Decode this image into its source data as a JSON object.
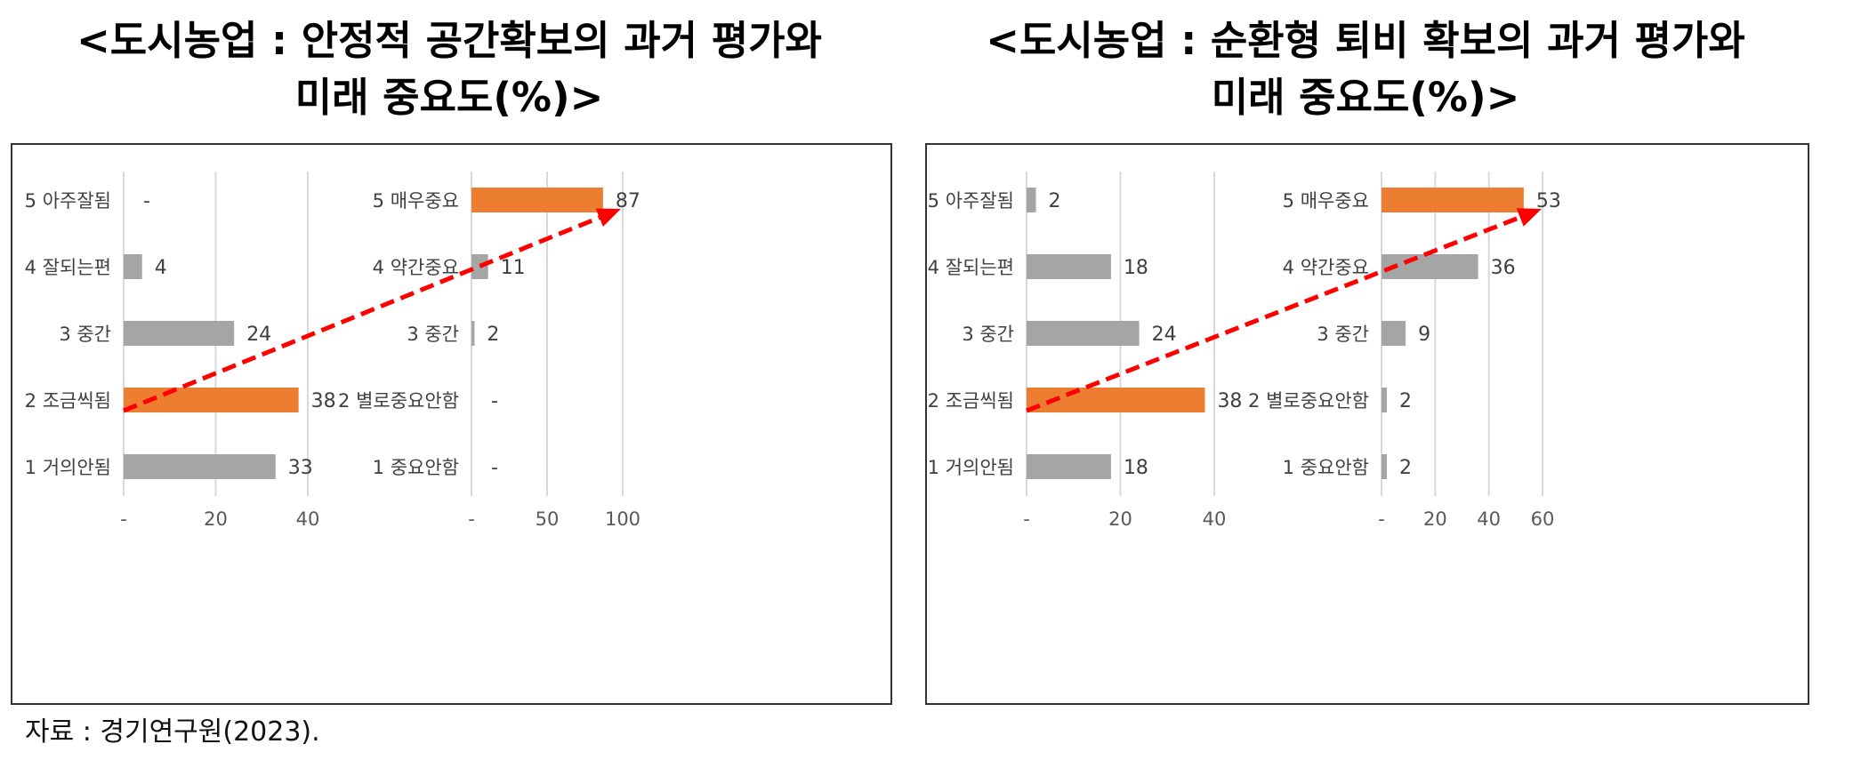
{
  "titles": {
    "left": {
      "line1": "<도시농업 : 안정적 공간확보의 과거 평가와",
      "line2": "미래 중요도(%)>"
    },
    "right": {
      "line1": "<도시농업 : 순환형 퇴비 확보의 과거 평가와",
      "line2": "미래 중요도(%)>"
    }
  },
  "source": "자료 : 경기연구원(2023).",
  "colors": {
    "gray_bar": "#a5a5a5",
    "highlight_bar": "#ed7d31",
    "grid": "#d9d9d9",
    "arrow": "#ff0000"
  },
  "chart_data": [
    {
      "type": "bar",
      "orientation": "horizontal",
      "panels": [
        {
          "categories": [
            "5 아주잘됨",
            "4 잘되는편",
            "3 중간",
            "2 조금씩됨",
            "1 거의안됨"
          ],
          "values": [
            0,
            4,
            24,
            38,
            33
          ],
          "value_labels": [
            "-",
            "4",
            "24",
            "38",
            "33"
          ],
          "highlight_index": 3,
          "xlim": [
            0,
            40
          ],
          "ticks": [
            0,
            20,
            40
          ],
          "tick_labels": [
            "-",
            "20",
            "40"
          ]
        },
        {
          "categories": [
            "5 매우중요",
            "4 약간중요",
            "3 중간",
            "2 별로중요안함",
            "1 중요안함"
          ],
          "values": [
            87,
            11,
            2,
            0,
            0
          ],
          "value_labels": [
            "87",
            "11",
            "2",
            "-",
            "-"
          ],
          "highlight_index": 0,
          "xlim": [
            0,
            100
          ],
          "ticks": [
            0,
            50,
            100
          ],
          "tick_labels": [
            "-",
            "50",
            "100"
          ]
        }
      ],
      "annotation": "dashed red arrow from the highlighted past bar to the highlighted future bar"
    },
    {
      "type": "bar",
      "orientation": "horizontal",
      "panels": [
        {
          "categories": [
            "5 아주잘됨",
            "4 잘되는편",
            "3 중간",
            "2 조금씩됨",
            "1 거의안됨"
          ],
          "values": [
            2,
            18,
            24,
            38,
            18
          ],
          "value_labels": [
            "2",
            "18",
            "24",
            "38",
            "18"
          ],
          "highlight_index": 3,
          "xlim": [
            0,
            40
          ],
          "ticks": [
            0,
            20,
            40
          ],
          "tick_labels": [
            "-",
            "20",
            "40"
          ]
        },
        {
          "categories": [
            "5 매우중요",
            "4 약간중요",
            "3 중간",
            "2 별로중요안함",
            "1 중요안함"
          ],
          "values": [
            53,
            36,
            9,
            2,
            2
          ],
          "value_labels": [
            "53",
            "36",
            "9",
            "2",
            "2"
          ],
          "highlight_index": 0,
          "xlim": [
            0,
            60
          ],
          "ticks": [
            0,
            20,
            40,
            60
          ],
          "tick_labels": [
            "-",
            "20",
            "40",
            "60"
          ]
        }
      ],
      "annotation": "dashed red arrow from the highlighted past bar to the highlighted future bar"
    }
  ]
}
